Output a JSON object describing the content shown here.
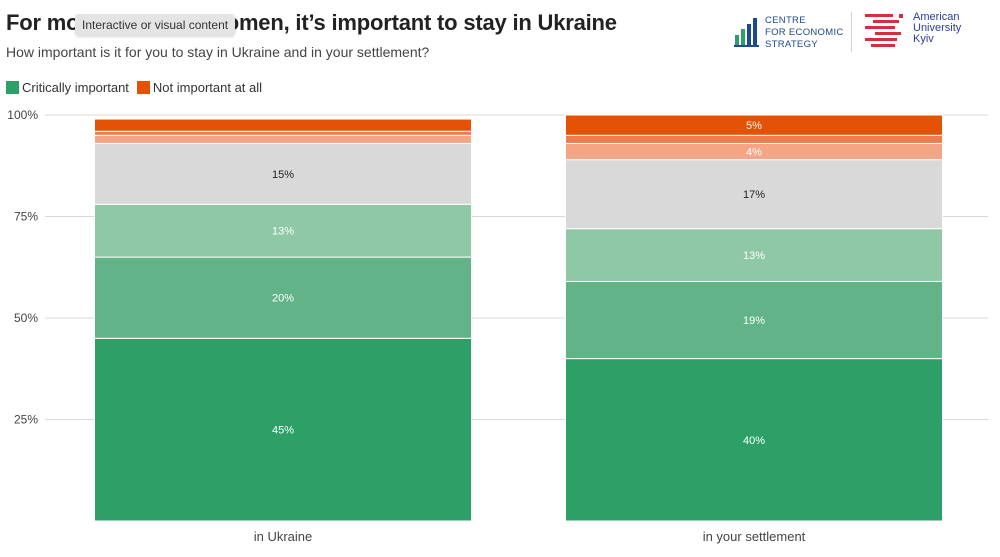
{
  "header": {
    "title": "For most Ukrainian women, it’s important to stay in Ukraine",
    "subtitle": "How important is it for you to stay in Ukraine and in your settlement?",
    "tooltip": "Interactive or visual content"
  },
  "logos": {
    "ces": {
      "name": "CENTRE FOR ECONOMIC STRATEGY",
      "lines": [
        "CENTRE",
        "FOR ECONOMIC",
        "STRATEGY"
      ],
      "color": "#1c4a8f"
    },
    "auk": {
      "name": "American University Kyiv",
      "lines": [
        "American",
        "University",
        "Kyiv"
      ],
      "color": "#d32f3c"
    }
  },
  "legend": [
    {
      "label": "Critically important",
      "color": "#2da068"
    },
    {
      "label": "Not important at all",
      "color": "#e35205"
    }
  ],
  "chart_data": {
    "type": "bar",
    "stacked": true,
    "categories": [
      "in Ukraine",
      "in your settlement"
    ],
    "ylim": [
      0,
      100
    ],
    "yticks": [
      25,
      50,
      75,
      100
    ],
    "ytick_labels": [
      "25%",
      "50%",
      "75%",
      "100%"
    ],
    "grid": true,
    "legend_position": "top-left",
    "series": [
      {
        "name": "Critically important",
        "color": "#2da068",
        "values": [
          45,
          40
        ],
        "labels": [
          "45%",
          "40%"
        ],
        "label_color": "#ffffff"
      },
      {
        "color": "#62b488",
        "values": [
          20,
          19
        ],
        "labels": [
          "20%",
          "19%"
        ],
        "label_color": "#ffffff"
      },
      {
        "color": "#8fc8a5",
        "values": [
          13,
          13
        ],
        "labels": [
          "13%",
          "13%"
        ],
        "label_color": "#ffffff"
      },
      {
        "color": "#d9d9d9",
        "values": [
          15,
          17
        ],
        "labels": [
          "15%",
          "17%"
        ],
        "label_color": "#222222"
      },
      {
        "color": "#f3a585",
        "values": [
          2,
          4
        ],
        "labels": [
          "",
          "4%"
        ],
        "label_color": "#ffffff"
      },
      {
        "color": "#ee7c4e",
        "values": [
          1,
          2
        ],
        "labels": [
          "",
          ""
        ],
        "label_color": "#ffffff"
      },
      {
        "name": "Not important at all",
        "color": "#e35205",
        "values": [
          3,
          5
        ],
        "labels": [
          "",
          "5%"
        ],
        "label_color": "#ffffff"
      }
    ]
  }
}
